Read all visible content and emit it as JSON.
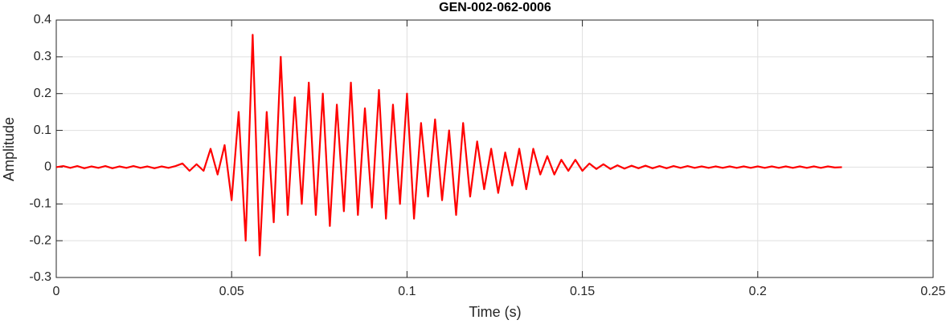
{
  "chart_data": {
    "type": "line",
    "title": "GEN-002-062-0006",
    "xlabel": "Time (s)",
    "ylabel": "Amplitude",
    "color": "#ff0000",
    "grid": true,
    "xlim": [
      0,
      0.25
    ],
    "xticks": [
      0,
      0.05,
      0.1,
      0.15,
      0.2,
      0.25
    ],
    "ylim": [
      -0.3,
      0.4
    ],
    "yticks": [
      -0.3,
      -0.2,
      -0.1,
      0,
      0.1,
      0.2,
      0.3,
      0.4
    ],
    "x": [
      0,
      0.002,
      0.004,
      0.006,
      0.008,
      0.01,
      0.012,
      0.014,
      0.016,
      0.018,
      0.02,
      0.022,
      0.024,
      0.026,
      0.028,
      0.03,
      0.032,
      0.034,
      0.036,
      0.038,
      0.04,
      0.042,
      0.044,
      0.046,
      0.048,
      0.05,
      0.052,
      0.054,
      0.056,
      0.058,
      0.06,
      0.062,
      0.064,
      0.066,
      0.068,
      0.07,
      0.072,
      0.074,
      0.076,
      0.078,
      0.08,
      0.082,
      0.084,
      0.086,
      0.088,
      0.09,
      0.092,
      0.094,
      0.096,
      0.098,
      0.1,
      0.102,
      0.104,
      0.106,
      0.108,
      0.11,
      0.112,
      0.114,
      0.116,
      0.118,
      0.12,
      0.122,
      0.124,
      0.126,
      0.128,
      0.13,
      0.132,
      0.134,
      0.136,
      0.138,
      0.14,
      0.142,
      0.144,
      0.146,
      0.148,
      0.15,
      0.152,
      0.154,
      0.156,
      0.158,
      0.16,
      0.162,
      0.164,
      0.166,
      0.168,
      0.17,
      0.172,
      0.174,
      0.176,
      0.178,
      0.18,
      0.182,
      0.184,
      0.186,
      0.188,
      0.19,
      0.192,
      0.194,
      0.196,
      0.198,
      0.2,
      0.202,
      0.204,
      0.206,
      0.208,
      0.21,
      0.212,
      0.214,
      0.216,
      0.218,
      0.22,
      0.222,
      0.224
    ],
    "values": [
      0,
      0.003,
      -0.002,
      0.003,
      -0.003,
      0.002,
      -0.002,
      0.003,
      -0.003,
      0.002,
      -0.002,
      0.003,
      -0.002,
      0.002,
      -0.003,
      0.002,
      -0.002,
      0.003,
      0.01,
      -0.01,
      0.008,
      -0.01,
      0.05,
      -0.02,
      0.06,
      -0.09,
      0.15,
      -0.2,
      0.36,
      -0.24,
      0.15,
      -0.15,
      0.3,
      -0.13,
      0.19,
      -0.1,
      0.23,
      -0.13,
      0.2,
      -0.16,
      0.17,
      -0.12,
      0.23,
      -0.13,
      0.16,
      -0.11,
      0.21,
      -0.14,
      0.17,
      -0.1,
      0.2,
      -0.14,
      0.12,
      -0.08,
      0.13,
      -0.09,
      0.1,
      -0.13,
      0.12,
      -0.08,
      0.07,
      -0.06,
      0.05,
      -0.07,
      0.04,
      -0.05,
      0.05,
      -0.06,
      0.05,
      -0.02,
      0.03,
      -0.02,
      0.02,
      -0.01,
      0.02,
      -0.01,
      0.01,
      -0.005,
      0.008,
      -0.005,
      0.005,
      -0.004,
      0.004,
      -0.003,
      0.004,
      -0.003,
      0.003,
      -0.003,
      0.003,
      -0.002,
      0.003,
      -0.002,
      0.002,
      -0.002,
      0.002,
      -0.002,
      0.002,
      -0.002,
      0.002,
      -0.002,
      0.002,
      -0.002,
      0.002,
      -0.002,
      0.002,
      -0.002,
      0.002,
      -0.002,
      0.002,
      -0.002,
      0.002,
      -0.001,
      0
    ]
  }
}
